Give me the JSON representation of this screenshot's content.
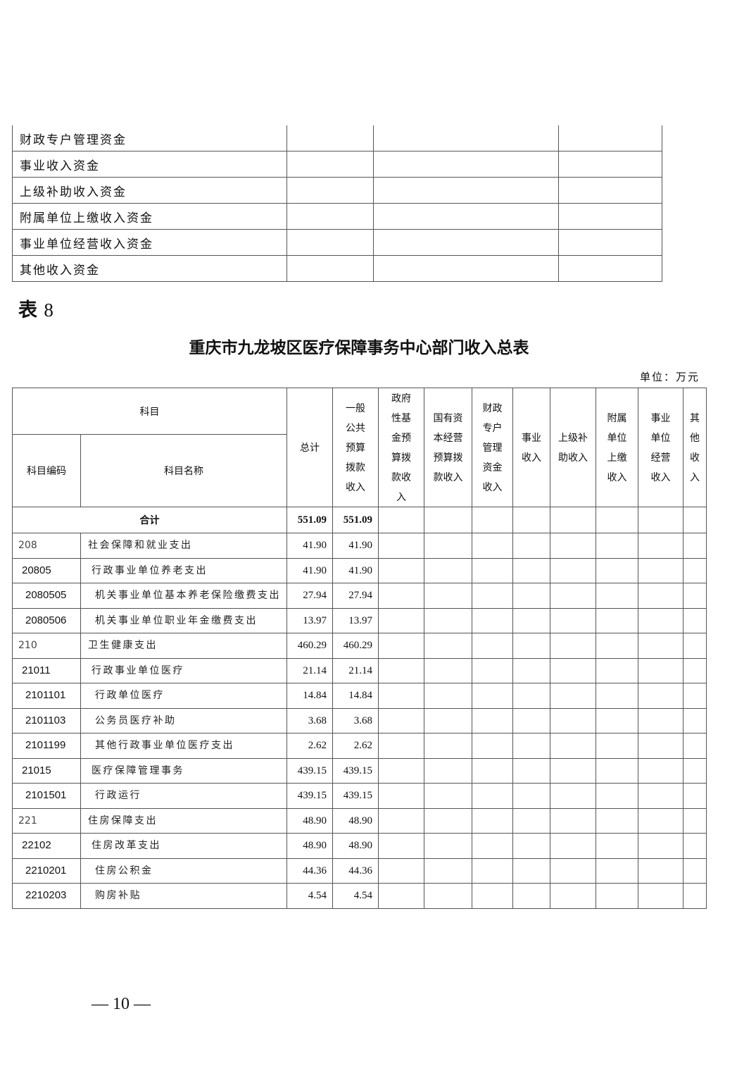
{
  "prev_table": {
    "rows": [
      "财政专户管理资金",
      "事业收入资金",
      "上级补助收入资金",
      "附属单位上缴收入资金",
      "事业单位经营收入资金",
      "其他收入资金"
    ]
  },
  "table_label": {
    "prefix": "表",
    "number": "8"
  },
  "title": "重庆市九龙坡区医疗保障事务中心部门收入总表",
  "unit": "单位：万元",
  "headers": {
    "subject": "科目",
    "code": "科目编码",
    "name": "科目名称",
    "total": "总计",
    "general_public": "一般公共预算拨款收入",
    "gov_fund": "政府性基金预算拨款收入",
    "state_capital": "国有资本经营预算拨款收入",
    "fiscal_special": "财政专户管理资金收入",
    "business": "事业收入",
    "superior_subsidy": "上级补助收入",
    "affiliated": "附属单位上缴收入",
    "business_operation": "事业单位经营收入",
    "other": "其他收入"
  },
  "total_row": {
    "label": "合计",
    "total": "551.09",
    "general_public": "551.09"
  },
  "rows": [
    {
      "code": "208",
      "name": "社会保障和就业支出",
      "total": "41.90",
      "general_public": "41.90",
      "level": 1
    },
    {
      "code": "20805",
      "name": "行政事业单位养老支出",
      "total": "41.90",
      "general_public": "41.90",
      "level": 2
    },
    {
      "code": "2080505",
      "name": "机关事业单位基本养老保险缴费支出",
      "total": "27.94",
      "general_public": "27.94",
      "level": 3
    },
    {
      "code": "2080506",
      "name": "机关事业单位职业年金缴费支出",
      "total": "13.97",
      "general_public": "13.97",
      "level": 3
    },
    {
      "code": "210",
      "name": "卫生健康支出",
      "total": "460.29",
      "general_public": "460.29",
      "level": 1
    },
    {
      "code": "21011",
      "name": "行政事业单位医疗",
      "total": "21.14",
      "general_public": "21.14",
      "level": 2
    },
    {
      "code": "2101101",
      "name": "行政单位医疗",
      "total": "14.84",
      "general_public": "14.84",
      "level": 3
    },
    {
      "code": "2101103",
      "name": "公务员医疗补助",
      "total": "3.68",
      "general_public": "3.68",
      "level": 3
    },
    {
      "code": "2101199",
      "name": "其他行政事业单位医疗支出",
      "total": "2.62",
      "general_public": "2.62",
      "level": 3
    },
    {
      "code": "21015",
      "name": "医疗保障管理事务",
      "total": "439.15",
      "general_public": "439.15",
      "level": 2
    },
    {
      "code": "2101501",
      "name": "行政运行",
      "total": "439.15",
      "general_public": "439.15",
      "level": 3
    },
    {
      "code": "221",
      "name": "住房保障支出",
      "total": "48.90",
      "general_public": "48.90",
      "level": 1
    },
    {
      "code": "22102",
      "name": "住房改革支出",
      "total": "48.90",
      "general_public": "48.90",
      "level": 2
    },
    {
      "code": "2210201",
      "name": "住房公积金",
      "total": "44.36",
      "general_public": "44.36",
      "level": 3
    },
    {
      "code": "2210203",
      "name": "购房补贴",
      "total": "4.54",
      "general_public": "4.54",
      "level": 3
    }
  ],
  "page_number": "— 10 —"
}
